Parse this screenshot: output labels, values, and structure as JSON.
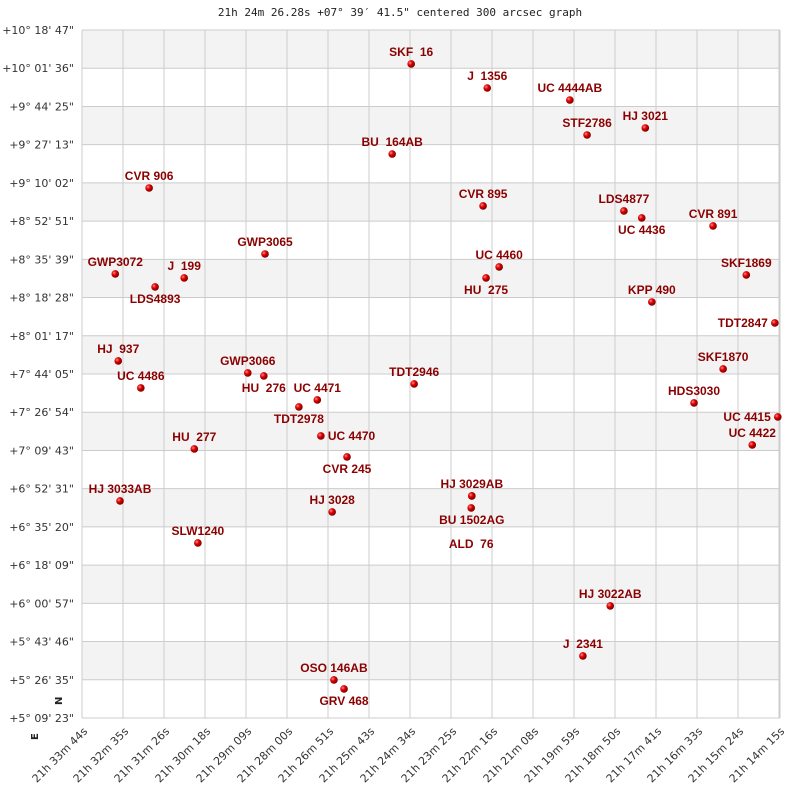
{
  "chart_data": {
    "type": "scatter",
    "title": "21h 24m 26.28s +07° 39′ 41.5\" centered 300 arcsec graph",
    "compass": {
      "north": "N",
      "east": "E"
    },
    "grid": true,
    "colors": {
      "point": "#dd0000",
      "label": "#8b0000",
      "band": "#f3f3f3",
      "grid": "#cccccc"
    },
    "ylim": [
      "+10 18 47",
      "+5 09 23"
    ],
    "y_ticks": [
      "+10° 18' 47\"",
      "+10° 01' 36\"",
      "+9° 44' 25\"",
      "+9° 27' 13\"",
      "+9° 10' 02\"",
      "+8° 52' 51\"",
      "+8° 35' 39\"",
      "+8° 18' 28\"",
      "+8° 01' 17\"",
      "+7° 44' 05\"",
      "+7° 26' 54\"",
      "+7° 09' 43\"",
      "+6° 52' 31\"",
      "+6° 35' 20\"",
      "+6° 18' 09\"",
      "+6° 00' 57\"",
      "+5° 43' 46\"",
      "+5° 26' 35\"",
      "+5° 09' 23\""
    ],
    "x_ticks": [
      "21h 33m 44s",
      "21h 32m 35s",
      "21h 31m 26s",
      "21h 30m 18s",
      "21h 29m 09s",
      "21h 28m 00s",
      "21h 26m 51s",
      "21h 25m 43s",
      "21h 24m 34s",
      "21h 23m 25s",
      "21h 22m 16s",
      "21h 21m 08s",
      "21h 19m 59s",
      "21h 18m 50s",
      "21h 17m 41s",
      "21h 16m 33s",
      "21h 15m 24s",
      "21h 14m 15s"
    ],
    "points": [
      {
        "name": "SKF  16",
        "ra": "21 24 30",
        "dec": "+10 03 30"
      },
      {
        "name": "J  1356",
        "ra": "21 22 22",
        "dec": "+9 52 42"
      },
      {
        "name": "UC 4444AB",
        "ra": "21 20 03",
        "dec": "+9 47 18"
      },
      {
        "name": "HJ 3021",
        "ra": "21 17 56",
        "dec": "+9 34 43"
      },
      {
        "name": "STF2786",
        "ra": "21 19 34",
        "dec": "+9 31 34"
      },
      {
        "name": "BU  164AB",
        "ra": "21 25 02",
        "dec": "+9 23 01"
      },
      {
        "name": "CVR 906",
        "ra": "21 31 51",
        "dec": "+9 07 44"
      },
      {
        "name": "CVR 895",
        "ra": "21 22 29",
        "dec": "+8 59 39"
      },
      {
        "name": "LDS4877",
        "ra": "21 18 32",
        "dec": "+8 57 24"
      },
      {
        "name": "UC 4436",
        "ra": "21 18 02",
        "dec": "+8 54 15"
      },
      {
        "name": "CVR 891",
        "ra": "21 16 02",
        "dec": "+8 50 39"
      },
      {
        "name": "GWP3065",
        "ra": "21 28 36",
        "dec": "+8 38 03"
      },
      {
        "name": "UC 4460",
        "ra": "21 22 02",
        "dec": "+8 32 13"
      },
      {
        "name": "HU  275",
        "ra": "21 22 24",
        "dec": "+8 27 16"
      },
      {
        "name": "GWP3072",
        "ra": "21 32 48",
        "dec": "+8 29 04"
      },
      {
        "name": "J  199",
        "ra": "21 30 52",
        "dec": "+8 27 16"
      },
      {
        "name": "LDS4893",
        "ra": "21 31 41",
        "dec": "+8 23 13"
      },
      {
        "name": "SKF1869",
        "ra": "21 15 06",
        "dec": "+8 28 37"
      },
      {
        "name": "KPP 490",
        "ra": "21 17 45",
        "dec": "+8 16 28"
      },
      {
        "name": "TDT2847",
        "ra": "21 14 18",
        "dec": "+8 07 02"
      },
      {
        "name": "HJ  937",
        "ra": "21 32 43",
        "dec": "+7 49 57"
      },
      {
        "name": "GWP3066",
        "ra": "21 29 05",
        "dec": "+7 44 33"
      },
      {
        "name": "HU  276",
        "ra": "21 28 38",
        "dec": "+7 43 12"
      },
      {
        "name": "UC 4486",
        "ra": "21 32 05",
        "dec": "+7 37 48"
      },
      {
        "name": "SKF1870",
        "ra": "21 15 45",
        "dec": "+7 46 21"
      },
      {
        "name": "TDT2946",
        "ra": "21 24 25",
        "dec": "+7 39 36"
      },
      {
        "name": "UC 4471",
        "ra": "21 27 08",
        "dec": "+7 32 24"
      },
      {
        "name": "TDT2978",
        "ra": "21 27 39",
        "dec": "+7 29 16"
      },
      {
        "name": "HDS3030",
        "ra": "21 16 34",
        "dec": "+7 31 03"
      },
      {
        "name": "UC 4415",
        "ra": "21 14 13",
        "dec": "+7 24 46"
      },
      {
        "name": "UC 4470",
        "ra": "21 27 02",
        "dec": "+7 16 13"
      },
      {
        "name": "UC 4422",
        "ra": "21 14 56",
        "dec": "+7 12 10"
      },
      {
        "name": "HU  277",
        "ra": "21 30 35",
        "dec": "+7 10 22"
      },
      {
        "name": "CVR 245",
        "ra": "21 26 18",
        "dec": "+7 06 47"
      },
      {
        "name": "HJ 3029AB",
        "ra": "21 22 48",
        "dec": "+6 49 14"
      },
      {
        "name": "BU 1502AG",
        "ra": "21 22 48",
        "dec": "+6 49 14"
      },
      {
        "name": "ALD  76",
        "ra": "21 22 49",
        "dec": "+6 43 51"
      },
      {
        "name": "HJ 3033AB",
        "ra": "21 32 40",
        "dec": "+6 46 59"
      },
      {
        "name": "HJ 3028",
        "ra": "21 26 43",
        "dec": "+6 42 03"
      },
      {
        "name": "SLW1240",
        "ra": "21 30 29",
        "dec": "+6 28 06"
      },
      {
        "name": "HJ 3022AB",
        "ra": "21 18 55",
        "dec": "+5 59 47"
      },
      {
        "name": "J  2341",
        "ra": "21 19 41",
        "dec": "+5 37 18"
      },
      {
        "name": "OSO 146AB",
        "ra": "21 26 40",
        "dec": "+5 26 30"
      },
      {
        "name": "GRV 468",
        "ra": "21 26 23",
        "dec": "+5 22 27"
      }
    ]
  }
}
